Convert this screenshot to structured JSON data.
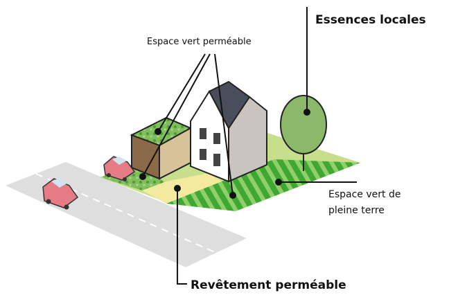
{
  "labels": {
    "tree": "Essences locales",
    "green_permeable": "Espace vert perméable",
    "green_ground": [
      "Espace vert de",
      "pleine terre"
    ],
    "paving": "Revêtement perméable"
  }
}
